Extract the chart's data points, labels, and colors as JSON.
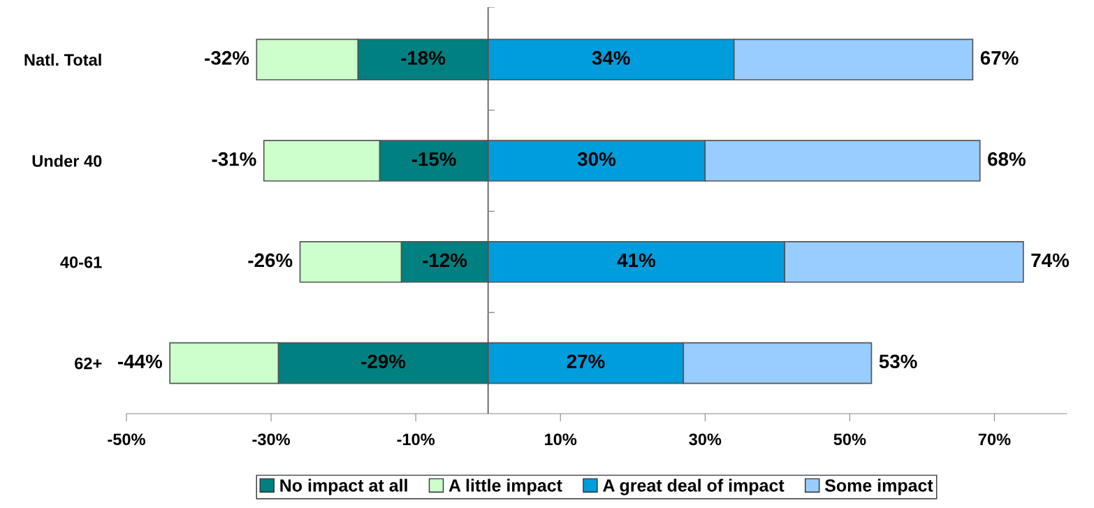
{
  "chart_data": {
    "type": "bar",
    "orientation": "horizontal",
    "stacked": true,
    "categories": [
      "Natl. Total",
      "Under 40",
      "40-61",
      "62+"
    ],
    "series": [
      {
        "name": "No impact at all",
        "color": "#008080",
        "values": [
          -18,
          -15,
          -12,
          -29
        ],
        "value_labels": [
          "-18%",
          "-15%",
          "-12%",
          "-29%"
        ]
      },
      {
        "name": "A little impact",
        "color": "#ccffcc",
        "values": [
          -14,
          -16,
          -14,
          -15
        ]
      },
      {
        "name": "A great deal of impact",
        "color": "#009ddc",
        "values": [
          34,
          30,
          41,
          27
        ],
        "value_labels": [
          "34%",
          "30%",
          "41%",
          "27%"
        ]
      },
      {
        "name": "Some impact",
        "color": "#99ccff",
        "values": [
          33,
          38,
          33,
          26
        ]
      }
    ],
    "annotations": [
      {
        "text": "-32%",
        "x": -32,
        "y": "Natl. Total"
      },
      {
        "text": "-31%",
        "x": -31,
        "y": "Under 40"
      },
      {
        "text": "-26%",
        "x": -26,
        "y": "40-61"
      },
      {
        "text": "-44%",
        "x": -44,
        "y": "62+"
      },
      {
        "text": "67%",
        "x": 67,
        "y": "Natl. Total"
      },
      {
        "text": "68%",
        "x": 68,
        "y": "Under 40"
      },
      {
        "text": "74%",
        "x": 74,
        "y": "40-61"
      },
      {
        "text": "53%",
        "x": 53,
        "y": "62+"
      }
    ],
    "xlim": [
      -50,
      80
    ],
    "xticks": [
      {
        "value": -50,
        "label": "-50%"
      },
      {
        "value": -30,
        "label": "-30%"
      },
      {
        "value": -10,
        "label": "-10%"
      },
      {
        "value": 10,
        "label": "10%"
      },
      {
        "value": 30,
        "label": "30%"
      },
      {
        "value": 50,
        "label": "50%"
      },
      {
        "value": 70,
        "label": "70%"
      }
    ],
    "legend": "bottom"
  }
}
